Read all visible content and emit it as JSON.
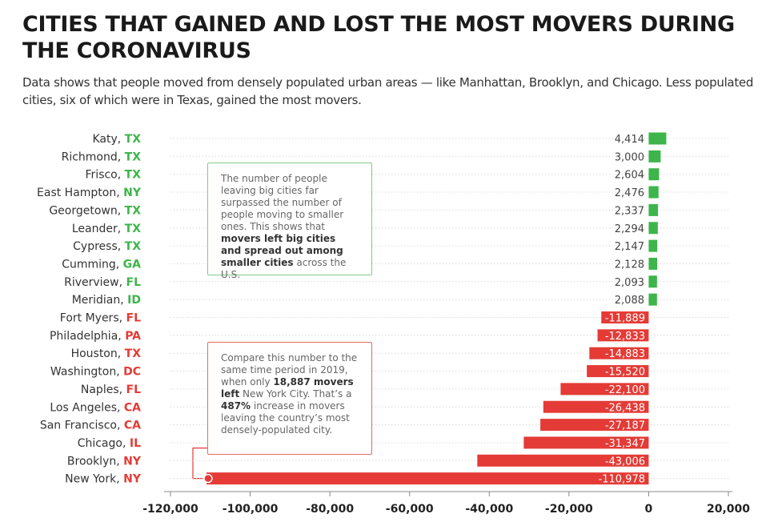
{
  "title": "CITIES THAT GAINED AND LOST THE MOST MOVERS DURING THE CORONAVIRUS",
  "subtitle": "Data shows that people moved from densely populated urban areas — like Manhattan, Brooklyn, and Chicago. Less populated cities, six of which were in Texas, gained the most movers.",
  "colors": {
    "gain": "#3db54a",
    "loss": "#e43b36",
    "grid": "#cccccc"
  },
  "note_gain": {
    "parts": [
      "The number of people leaving big cities far surpassed the number of people moving to smaller ones. This shows that ",
      "movers left big cities and spread out among smaller cities",
      " across the U.S."
    ]
  },
  "note_loss": {
    "parts": [
      "Compare this number to the same time period in 2019, when only ",
      "18,887 movers left",
      " New York City. That’s a ",
      "487%",
      " increase in movers leaving the country’s most densely-populated city."
    ]
  },
  "chart_data": {
    "type": "bar",
    "orientation": "horizontal",
    "title": "CITIES THAT GAINED AND LOST THE MOST MOVERS DURING THE CORONAVIRUS",
    "xlim": [
      -120000,
      20000
    ],
    "xticks": [
      -120000,
      -100000,
      -80000,
      -60000,
      -40000,
      -20000,
      0,
      20000
    ],
    "xtick_labels": [
      "-120,000",
      "-100,000",
      "-80,000",
      "-60,000",
      "-40,000",
      "-20,000",
      "0",
      "20,000"
    ],
    "grid": "horizontal dotted",
    "categories": [
      {
        "city": "Katy",
        "state": "TX"
      },
      {
        "city": "Richmond",
        "state": "TX"
      },
      {
        "city": "Frisco",
        "state": "TX"
      },
      {
        "city": "East Hampton",
        "state": "NY"
      },
      {
        "city": "Georgetown",
        "state": "TX"
      },
      {
        "city": "Leander",
        "state": "TX"
      },
      {
        "city": "Cypress",
        "state": "TX"
      },
      {
        "city": "Cumming",
        "state": "GA"
      },
      {
        "city": "Riverview",
        "state": "FL"
      },
      {
        "city": "Meridian",
        "state": "ID"
      },
      {
        "city": "Fort Myers",
        "state": "FL"
      },
      {
        "city": "Philadelphia",
        "state": "PA"
      },
      {
        "city": "Houston",
        "state": "TX"
      },
      {
        "city": "Washington",
        "state": "DC"
      },
      {
        "city": "Naples",
        "state": "FL"
      },
      {
        "city": "Los Angeles",
        "state": "CA"
      },
      {
        "city": "San Francisco",
        "state": "CA"
      },
      {
        "city": "Chicago",
        "state": "IL"
      },
      {
        "city": "Brooklyn",
        "state": "NY"
      },
      {
        "city": "New York",
        "state": "NY"
      }
    ],
    "values": [
      4414,
      3000,
      2604,
      2476,
      2337,
      2294,
      2147,
      2128,
      2093,
      2088,
      -11889,
      -12833,
      -14883,
      -15520,
      -22100,
      -26438,
      -27187,
      -31347,
      -43006,
      -110978
    ],
    "value_labels": [
      "4,414",
      "3,000",
      "2,604",
      "2,476",
      "2,337",
      "2,294",
      "2,147",
      "2,128",
      "2,093",
      "2,088",
      "-11,889",
      "-12,833",
      "-14,883",
      "-15,520",
      "-22,100",
      "-26,438",
      "-27,187",
      "-31,347",
      "-43,006",
      "-110,978"
    ]
  }
}
